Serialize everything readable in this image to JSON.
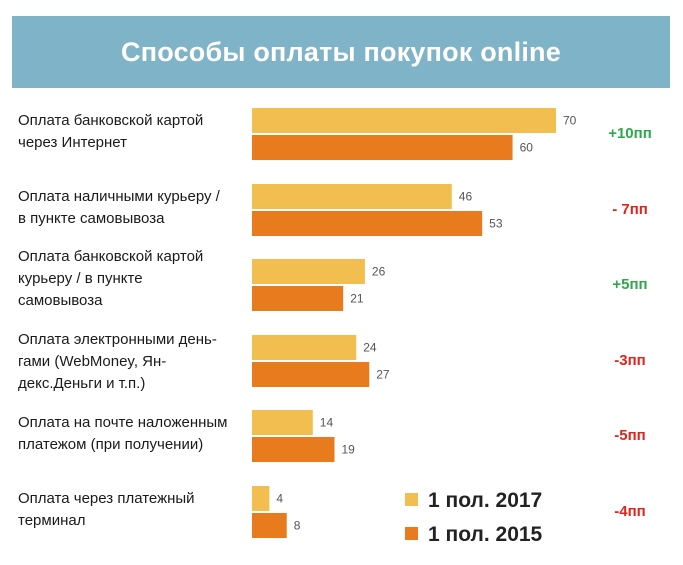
{
  "title": "Способы оплаты покупок online",
  "chart_data": {
    "type": "bar",
    "orientation": "horizontal",
    "title": "Способы оплаты покупок online",
    "categories": [
      [
        "Оплата банковской картой",
        "через Интернет"
      ],
      [
        "Оплата наличными курьеру /",
        "в пункте самовывоза"
      ],
      [
        "Оплата банковской картой",
        "курьеру / в пункте",
        "самовывоза"
      ],
      [
        "Оплата электронными день-",
        "гами (WebMoney, Ян-",
        "декс.Деньги и т.п.)"
      ],
      [
        "Оплата на почте наложенным",
        "платежом (при получении)"
      ],
      [
        "Оплата через платежный",
        "терминал"
      ]
    ],
    "series": [
      {
        "name": "1 пол. 2017",
        "color": "#f2be4f",
        "values": [
          70,
          46,
          26,
          24,
          14,
          4
        ]
      },
      {
        "name": "1 пол. 2015",
        "color": "#e87b1e",
        "values": [
          60,
          53,
          21,
          27,
          19,
          8
        ]
      }
    ],
    "differences": [
      {
        "text": "+10пп",
        "color": "#2ea84a"
      },
      {
        "text": "- 7пп",
        "color": "#e0241b"
      },
      {
        "text": "+5пп",
        "color": "#2ea84a"
      },
      {
        "text": "-3пп",
        "color": "#e0241b"
      },
      {
        "text": "-5пп",
        "color": "#e0241b"
      },
      {
        "text": "-4пп",
        "color": "#e0241b"
      }
    ],
    "xlim": [
      0,
      70
    ],
    "grid": false,
    "legend_position": "bottom-right"
  }
}
